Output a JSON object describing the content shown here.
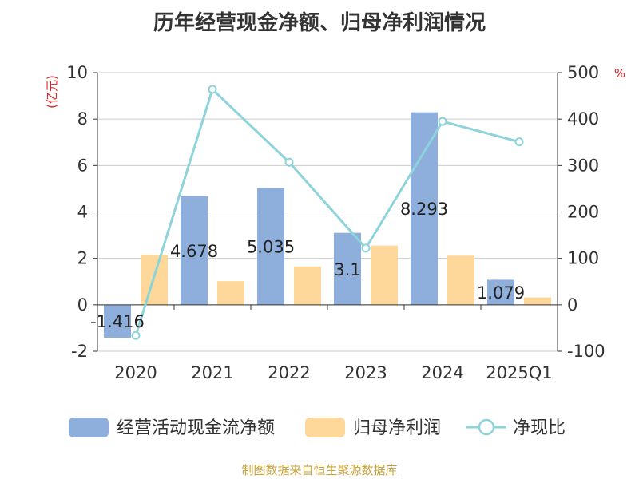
{
  "chart_data": {
    "type": "bar",
    "title": "历年经营现金净额、归母净利润情况",
    "categories": [
      "2020",
      "2021",
      "2022",
      "2023",
      "2024",
      "2025Q1"
    ],
    "y_left": {
      "unit_label": "(亿元)",
      "ylim": [
        -2,
        10
      ],
      "ticks": [
        "10",
        "8",
        "6",
        "4",
        "2",
        "0",
        "-2"
      ]
    },
    "y_right": {
      "unit_label": "%",
      "ylim": [
        -100,
        500
      ],
      "ticks": [
        "500",
        "400",
        "300",
        "200",
        "100",
        "0",
        "-100"
      ]
    },
    "series": [
      {
        "name": "经营活动现金流净额",
        "type": "bar",
        "axis": "left",
        "color": "#8eaedc",
        "values": [
          -1.416,
          4.678,
          5.035,
          3.1,
          8.293,
          1.079
        ],
        "labels": [
          "-1.416",
          "4.678",
          "5.035",
          "3.1",
          "8.293",
          "1.079"
        ]
      },
      {
        "name": "归母净利润",
        "type": "bar",
        "axis": "left",
        "color": "#fdd89a",
        "values": [
          2.15,
          1.02,
          1.65,
          2.55,
          2.12,
          0.32
        ]
      },
      {
        "name": "净现比",
        "type": "line",
        "axis": "right",
        "color": "#8dd3da",
        "values": [
          -66,
          464,
          307,
          122,
          395,
          351
        ]
      }
    ],
    "grid": true,
    "legend": "bottom"
  },
  "source": "制图数据来自恒生聚源数据库"
}
